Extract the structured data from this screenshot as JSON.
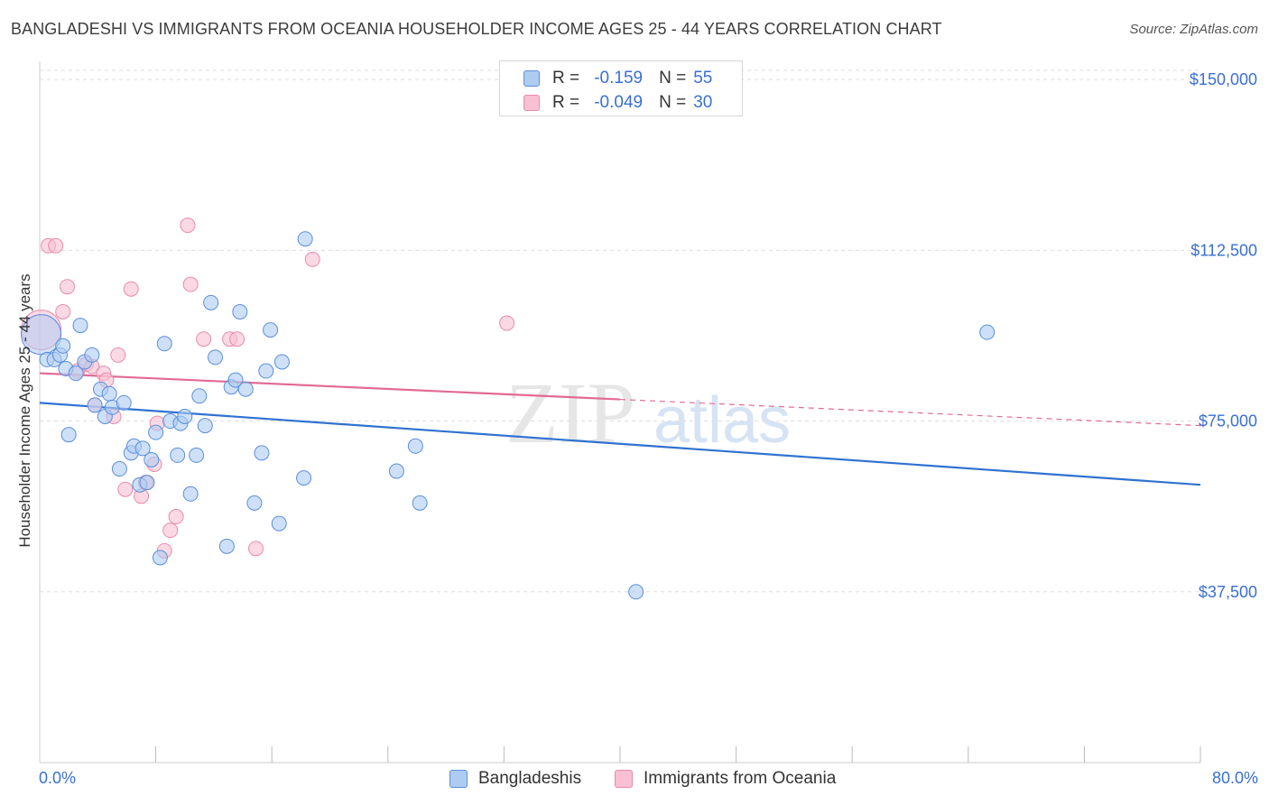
{
  "title": "BANGLADESHI VS IMMIGRANTS FROM OCEANIA HOUSEHOLDER INCOME AGES 25 - 44 YEARS CORRELATION CHART",
  "source": "Source: ZipAtlas.com",
  "watermark": {
    "zip": "ZIP",
    "atlas": "atlas"
  },
  "legend": {
    "rows": [
      {
        "r_label": "R =",
        "r_value": "-0.159",
        "n_label": "N =",
        "n_value": "55"
      },
      {
        "r_label": "R =",
        "r_value": "-0.049",
        "n_label": "N =",
        "n_value": "30"
      }
    ]
  },
  "x_min_label": "0.0%",
  "x_max_label": "80.0%",
  "colors": {
    "blue_fill": "#aecbf2",
    "blue_stroke": "#5b8fdc",
    "blue_line": "#3072d0",
    "pink_fill": "#f8c0d2",
    "pink_stroke": "#e98bab",
    "pink_line": "#e26a92",
    "tick_text": "#3a6fd4",
    "grid": "#dddddd"
  },
  "chart_data": {
    "type": "scatter",
    "title": "BANGLADESHI VS IMMIGRANTS FROM OCEANIA HOUSEHOLDER INCOME AGES 25 - 44 YEARS CORRELATION CHART",
    "xlabel": "",
    "ylabel": "Householder Income Ages 25 - 44 years",
    "xlim": [
      0,
      80
    ],
    "ylim": [
      0,
      152000
    ],
    "x_ticks": [
      "0.0%",
      "80.0%"
    ],
    "y_ticks": [
      {
        "value": 37500,
        "label": "$37,500"
      },
      {
        "value": 75000,
        "label": "$75,000"
      },
      {
        "value": 112500,
        "label": "$112,500"
      },
      {
        "value": 150000,
        "label": "$150,000"
      }
    ],
    "grid": true,
    "legend_position": "top-center",
    "series": [
      {
        "name": "Bangladeshis",
        "r": -0.159,
        "n": 55,
        "trend": {
          "x": [
            0,
            80
          ],
          "y": [
            79000,
            61000
          ],
          "dashed_from": null
        },
        "points": [
          {
            "x": 0.1,
            "y": 94000,
            "big": true
          },
          {
            "x": 0.5,
            "y": 88500
          },
          {
            "x": 1.0,
            "y": 88500
          },
          {
            "x": 1.4,
            "y": 89500
          },
          {
            "x": 1.6,
            "y": 91500
          },
          {
            "x": 1.8,
            "y": 86500
          },
          {
            "x": 2.0,
            "y": 72000
          },
          {
            "x": 2.5,
            "y": 85500
          },
          {
            "x": 2.8,
            "y": 96000
          },
          {
            "x": 3.1,
            "y": 88000
          },
          {
            "x": 3.6,
            "y": 89500
          },
          {
            "x": 3.8,
            "y": 78500
          },
          {
            "x": 4.2,
            "y": 82000
          },
          {
            "x": 4.5,
            "y": 76000
          },
          {
            "x": 4.8,
            "y": 81000
          },
          {
            "x": 5.0,
            "y": 78000
          },
          {
            "x": 5.5,
            "y": 64500
          },
          {
            "x": 5.8,
            "y": 79000
          },
          {
            "x": 6.3,
            "y": 68000
          },
          {
            "x": 6.5,
            "y": 69500
          },
          {
            "x": 6.9,
            "y": 61000
          },
          {
            "x": 7.1,
            "y": 69000
          },
          {
            "x": 7.4,
            "y": 61500
          },
          {
            "x": 7.7,
            "y": 66500
          },
          {
            "x": 8.0,
            "y": 72500
          },
          {
            "x": 8.3,
            "y": 45000
          },
          {
            "x": 8.6,
            "y": 92000
          },
          {
            "x": 9.0,
            "y": 75000
          },
          {
            "x": 9.5,
            "y": 67500
          },
          {
            "x": 9.7,
            "y": 74500
          },
          {
            "x": 10.0,
            "y": 76000
          },
          {
            "x": 10.4,
            "y": 59000
          },
          {
            "x": 10.8,
            "y": 67500
          },
          {
            "x": 11.0,
            "y": 80500
          },
          {
            "x": 11.4,
            "y": 74000
          },
          {
            "x": 11.8,
            "y": 101000
          },
          {
            "x": 12.1,
            "y": 89000
          },
          {
            "x": 12.9,
            "y": 47500
          },
          {
            "x": 13.2,
            "y": 82500
          },
          {
            "x": 13.5,
            "y": 84000
          },
          {
            "x": 13.8,
            "y": 99000
          },
          {
            "x": 14.2,
            "y": 82000
          },
          {
            "x": 14.8,
            "y": 57000
          },
          {
            "x": 15.3,
            "y": 68000
          },
          {
            "x": 15.6,
            "y": 86000
          },
          {
            "x": 15.9,
            "y": 95000
          },
          {
            "x": 16.7,
            "y": 88000
          },
          {
            "x": 16.5,
            "y": 52500
          },
          {
            "x": 18.2,
            "y": 62500
          },
          {
            "x": 18.3,
            "y": 115000
          },
          {
            "x": 24.6,
            "y": 64000
          },
          {
            "x": 25.9,
            "y": 69500
          },
          {
            "x": 26.2,
            "y": 57000
          },
          {
            "x": 41.1,
            "y": 37500
          },
          {
            "x": 65.3,
            "y": 94500
          }
        ]
      },
      {
        "name": "Immigrants from Oceania",
        "r": -0.049,
        "n": 30,
        "trend": {
          "x": [
            0,
            80
          ],
          "y": [
            85500,
            74000
          ],
          "dashed_from": 40
        },
        "points": [
          {
            "x": 0.1,
            "y": 95000,
            "big": true
          },
          {
            "x": 0.6,
            "y": 113500
          },
          {
            "x": 1.1,
            "y": 113500
          },
          {
            "x": 1.6,
            "y": 99000
          },
          {
            "x": 1.9,
            "y": 104500
          },
          {
            "x": 2.6,
            "y": 86000
          },
          {
            "x": 3.2,
            "y": 87500
          },
          {
            "x": 3.6,
            "y": 87000
          },
          {
            "x": 3.8,
            "y": 78500
          },
          {
            "x": 4.4,
            "y": 85500
          },
          {
            "x": 4.6,
            "y": 84000
          },
          {
            "x": 5.1,
            "y": 76000
          },
          {
            "x": 5.4,
            "y": 89500
          },
          {
            "x": 5.9,
            "y": 60000
          },
          {
            "x": 6.3,
            "y": 104000
          },
          {
            "x": 7.0,
            "y": 58500
          },
          {
            "x": 7.3,
            "y": 61500
          },
          {
            "x": 7.9,
            "y": 65500
          },
          {
            "x": 8.1,
            "y": 74500
          },
          {
            "x": 8.6,
            "y": 46500
          },
          {
            "x": 9.0,
            "y": 51000
          },
          {
            "x": 9.4,
            "y": 54000
          },
          {
            "x": 10.2,
            "y": 118000
          },
          {
            "x": 10.4,
            "y": 105000
          },
          {
            "x": 11.3,
            "y": 93000
          },
          {
            "x": 13.1,
            "y": 93000
          },
          {
            "x": 13.6,
            "y": 93000
          },
          {
            "x": 14.9,
            "y": 47000
          },
          {
            "x": 18.8,
            "y": 110500
          },
          {
            "x": 32.2,
            "y": 96500
          }
        ]
      }
    ]
  }
}
